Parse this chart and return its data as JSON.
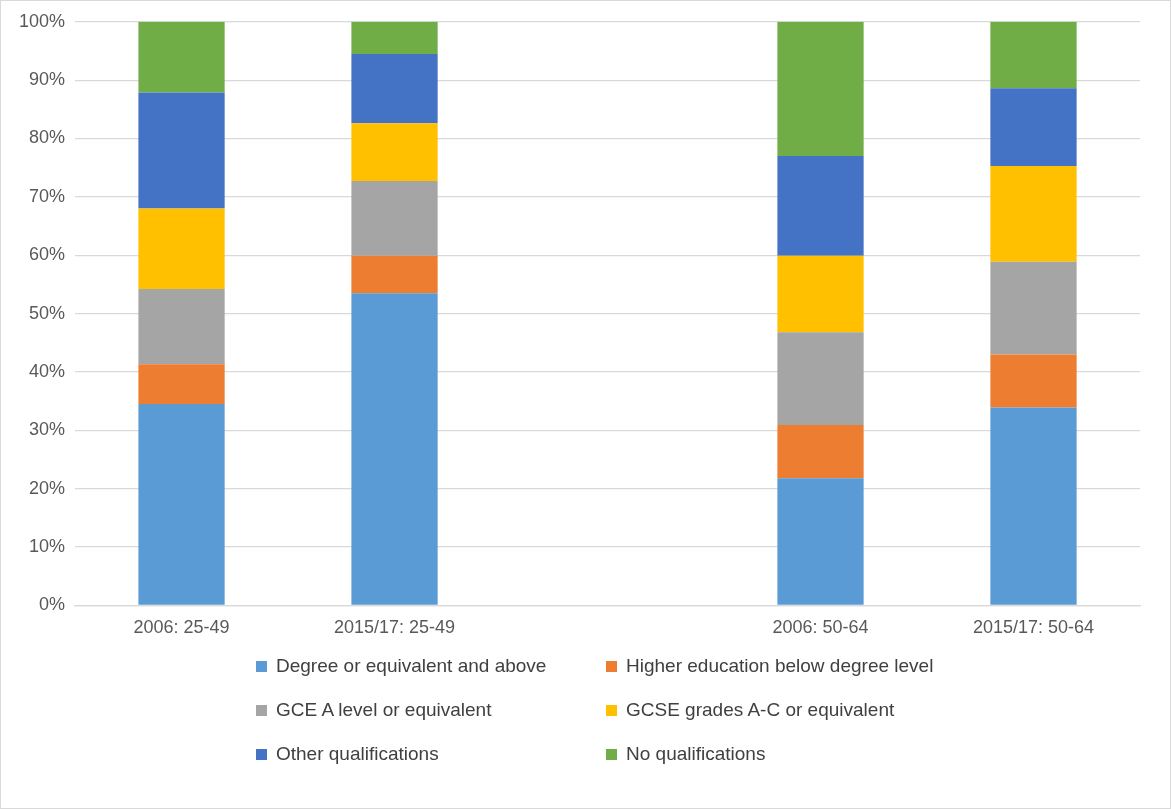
{
  "chart_data": {
    "type": "bar",
    "stacked": true,
    "categories": [
      "2006: 25-49",
      "2015/17: 25-49",
      null,
      "2006: 50-64",
      "2015/17: 50-64"
    ],
    "series": [
      {
        "name": "Degree or equivalent and above",
        "color": "#5b9bd5",
        "values": [
          34.5,
          53.5,
          null,
          21.8,
          33.9
        ]
      },
      {
        "name": "Higher education below degree level",
        "color": "#ed7d31",
        "values": [
          6.8,
          6.4,
          null,
          9.1,
          9.1
        ]
      },
      {
        "name": "GCE A level or equivalent",
        "color": "#a5a5a5",
        "values": [
          12.9,
          12.8,
          null,
          15.9,
          15.9
        ]
      },
      {
        "name": "GCSE grades A-C or equivalent",
        "color": "#ffc000",
        "values": [
          13.8,
          9.9,
          null,
          13.1,
          16.4
        ]
      },
      {
        "name": "Other qualifications",
        "color": "#4472c4",
        "values": [
          19.9,
          11.9,
          null,
          17.1,
          13.3
        ]
      },
      {
        "name": "No qualifications",
        "color": "#70ad47",
        "values": [
          12.1,
          5.5,
          null,
          23.0,
          11.4
        ]
      }
    ],
    "ylim": [
      0,
      100
    ],
    "yticks": [
      {
        "value": 0,
        "label": "0%"
      },
      {
        "value": 10,
        "label": "10%"
      },
      {
        "value": 20,
        "label": "20%"
      },
      {
        "value": 30,
        "label": "30%"
      },
      {
        "value": 40,
        "label": "40%"
      },
      {
        "value": 50,
        "label": "50%"
      },
      {
        "value": 60,
        "label": "60%"
      },
      {
        "value": 70,
        "label": "70%"
      },
      {
        "value": 80,
        "label": "80%"
      },
      {
        "value": 90,
        "label": "90%"
      },
      {
        "value": 100,
        "label": "100%"
      }
    ],
    "grid": "y",
    "legend": "bottom"
  }
}
